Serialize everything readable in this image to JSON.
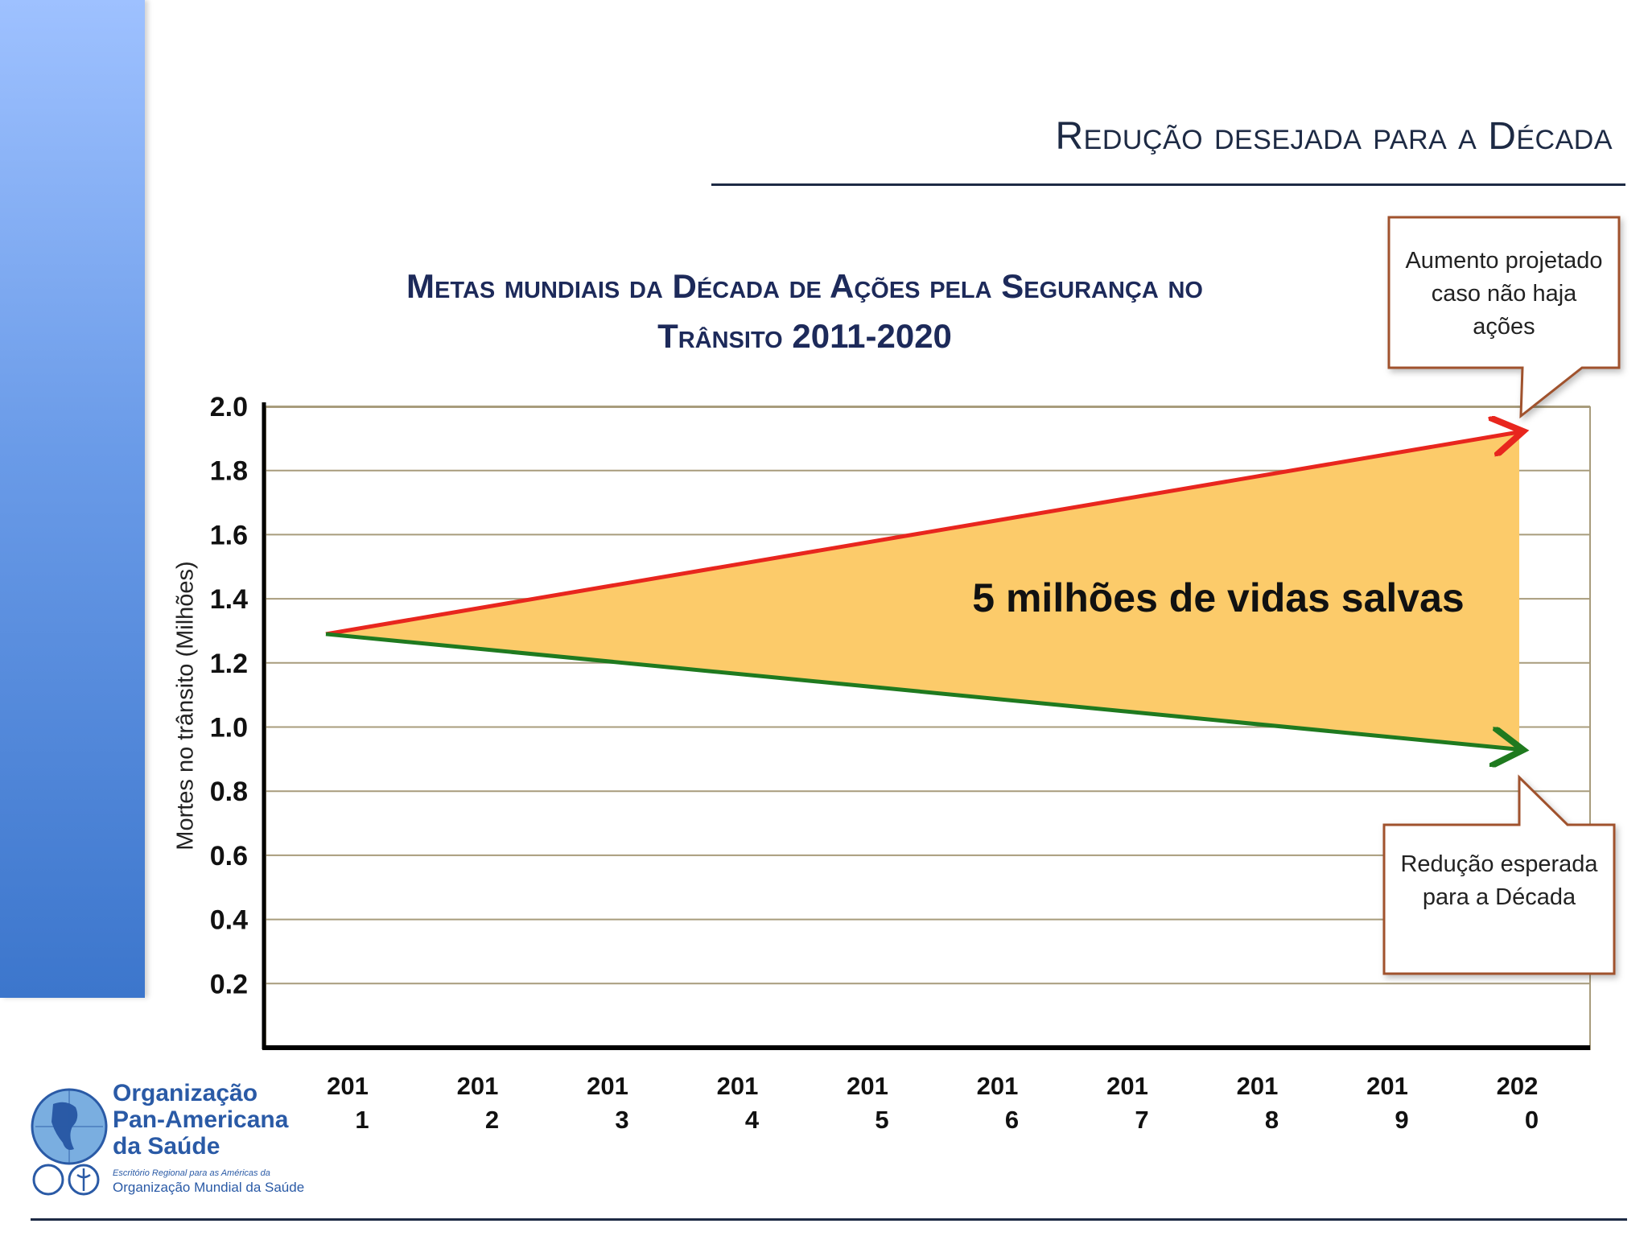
{
  "slide": {
    "title": "Redução desejada para a Década",
    "accent_color": "#5b8fe0"
  },
  "chart_data": {
    "type": "line",
    "title_line1": "Metas mundiais da Década de Ações pela Segurança no",
    "title_line2": "Trânsito 2011-2020",
    "ylabel": "Mortes no trânsito (Milhões)",
    "ylim": [
      0,
      2.0
    ],
    "y_ticks": [
      "2.0",
      "1.8",
      "1.6",
      "1.4",
      "1.2",
      "1.0",
      "0.8",
      "0.6",
      "0.4",
      "0.2"
    ],
    "y_tick_values": [
      2.0,
      1.8,
      1.6,
      1.4,
      1.2,
      1.0,
      0.8,
      0.6,
      0.4,
      0.2
    ],
    "categories": [
      {
        "top": "201",
        "bottom": "1"
      },
      {
        "top": "201",
        "bottom": "2"
      },
      {
        "top": "201",
        "bottom": "3"
      },
      {
        "top": "201",
        "bottom": "4"
      },
      {
        "top": "201",
        "bottom": "5"
      },
      {
        "top": "201",
        "bottom": "6"
      },
      {
        "top": "201",
        "bottom": "7"
      },
      {
        "top": "201",
        "bottom": "8"
      },
      {
        "top": "201",
        "bottom": "9"
      },
      {
        "top": "202",
        "bottom": "0"
      }
    ],
    "series": [
      {
        "name": "Aumento projetado caso não haja ações",
        "color": "#e8261e",
        "start": 1.29,
        "end": 1.92
      },
      {
        "name": "Redução esperada para a Década",
        "color": "#1f7a1f",
        "start": 1.29,
        "end": 0.93
      }
    ],
    "fill_color": "#fccb6a",
    "area_annotation": "5 milhões de vidas salvas",
    "grid": true
  },
  "callouts": {
    "top_text": "Aumento projetado caso não haja ações",
    "bottom_text": "Redução esperada para a Década"
  },
  "logo": {
    "line1": "Organização",
    "line2": "Pan-Americana",
    "line3": "da Saúde",
    "sub1": "Escritório Regional para as Américas da",
    "sub2": "Organização Mundial da Saúde"
  }
}
